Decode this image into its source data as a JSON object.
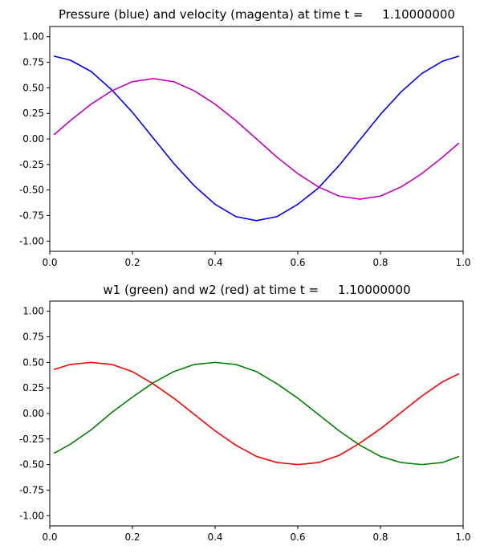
{
  "chart_data": [
    {
      "type": "line",
      "title": "Pressure (blue) and velocity (magenta) at time t =     1.10000000",
      "xlabel": "",
      "ylabel": "",
      "xlim": [
        0,
        1
      ],
      "ylim": [
        -1.1,
        1.1
      ],
      "grid": false,
      "xticks": [
        0,
        0.2,
        0.4,
        0.6,
        0.8,
        1
      ],
      "xtick_labels": [
        "0.0",
        "0.2",
        "0.4",
        "0.6",
        "0.8",
        "1.0"
      ],
      "yticks": [
        -1.0,
        -0.75,
        -0.5,
        -0.25,
        0.0,
        0.25,
        0.5,
        0.75,
        1.0
      ],
      "ytick_labels": [
        "-1.00",
        "-0.75",
        "-0.50",
        "-0.25",
        "0.00",
        "0.25",
        "0.50",
        "0.75",
        "1.00"
      ],
      "series": [
        {
          "color": "#0000ff",
          "x": [
            0.01,
            0.05,
            0.1,
            0.15,
            0.2,
            0.25,
            0.3,
            0.35,
            0.4,
            0.45,
            0.5,
            0.55,
            0.6,
            0.65,
            0.7,
            0.75,
            0.8,
            0.85,
            0.9,
            0.95,
            0.99
          ],
          "y": [
            0.81,
            0.77,
            0.66,
            0.48,
            0.26,
            0.01,
            -0.24,
            -0.46,
            -0.64,
            -0.76,
            -0.8,
            -0.76,
            -0.64,
            -0.48,
            -0.26,
            -0.01,
            0.24,
            0.46,
            0.64,
            0.76,
            0.81
          ]
        },
        {
          "color": "#bf00bf",
          "x": [
            0.01,
            0.05,
            0.1,
            0.15,
            0.2,
            0.25,
            0.3,
            0.35,
            0.4,
            0.45,
            0.5,
            0.55,
            0.6,
            0.65,
            0.7,
            0.75,
            0.8,
            0.85,
            0.9,
            0.95,
            0.99
          ],
          "y": [
            0.04,
            0.18,
            0.34,
            0.47,
            0.56,
            0.59,
            0.56,
            0.47,
            0.34,
            0.18,
            0.0,
            -0.18,
            -0.34,
            -0.47,
            -0.56,
            -0.59,
            -0.56,
            -0.47,
            -0.34,
            -0.18,
            -0.04
          ]
        }
      ]
    },
    {
      "type": "line",
      "title": "w1 (green) and w2 (red) at time t =     1.10000000",
      "xlabel": "",
      "ylabel": "",
      "xlim": [
        0,
        1
      ],
      "ylim": [
        -1.1,
        1.1
      ],
      "grid": false,
      "xticks": [
        0,
        0.2,
        0.4,
        0.6,
        0.8,
        1
      ],
      "xtick_labels": [
        "0.0",
        "0.2",
        "0.4",
        "0.6",
        "0.8",
        "1.0"
      ],
      "yticks": [
        -1.0,
        -0.75,
        -0.5,
        -0.25,
        0.0,
        0.25,
        0.5,
        0.75,
        1.0
      ],
      "ytick_labels": [
        "-1.00",
        "-0.75",
        "-0.50",
        "-0.25",
        "0.00",
        "0.25",
        "0.50",
        "0.75",
        "1.00"
      ],
      "series": [
        {
          "color": "#008000",
          "x": [
            0.01,
            0.05,
            0.1,
            0.15,
            0.2,
            0.25,
            0.3,
            0.35,
            0.4,
            0.45,
            0.5,
            0.55,
            0.6,
            0.65,
            0.7,
            0.75,
            0.8,
            0.85,
            0.9,
            0.95,
            0.99
          ],
          "y": [
            -0.39,
            -0.3,
            -0.16,
            0.01,
            0.16,
            0.3,
            0.41,
            0.48,
            0.5,
            0.48,
            0.41,
            0.29,
            0.15,
            -0.01,
            -0.17,
            -0.31,
            -0.42,
            -0.48,
            -0.5,
            -0.48,
            -0.42
          ]
        },
        {
          "color": "#ff0000",
          "x": [
            0.01,
            0.05,
            0.1,
            0.15,
            0.2,
            0.25,
            0.3,
            0.35,
            0.4,
            0.45,
            0.5,
            0.55,
            0.6,
            0.65,
            0.7,
            0.75,
            0.8,
            0.85,
            0.9,
            0.95,
            0.99
          ],
          "y": [
            0.43,
            0.48,
            0.5,
            0.48,
            0.41,
            0.29,
            0.15,
            -0.01,
            -0.17,
            -0.31,
            -0.42,
            -0.48,
            -0.5,
            -0.48,
            -0.41,
            -0.29,
            -0.15,
            0.01,
            0.17,
            0.31,
            0.39
          ]
        }
      ]
    }
  ]
}
